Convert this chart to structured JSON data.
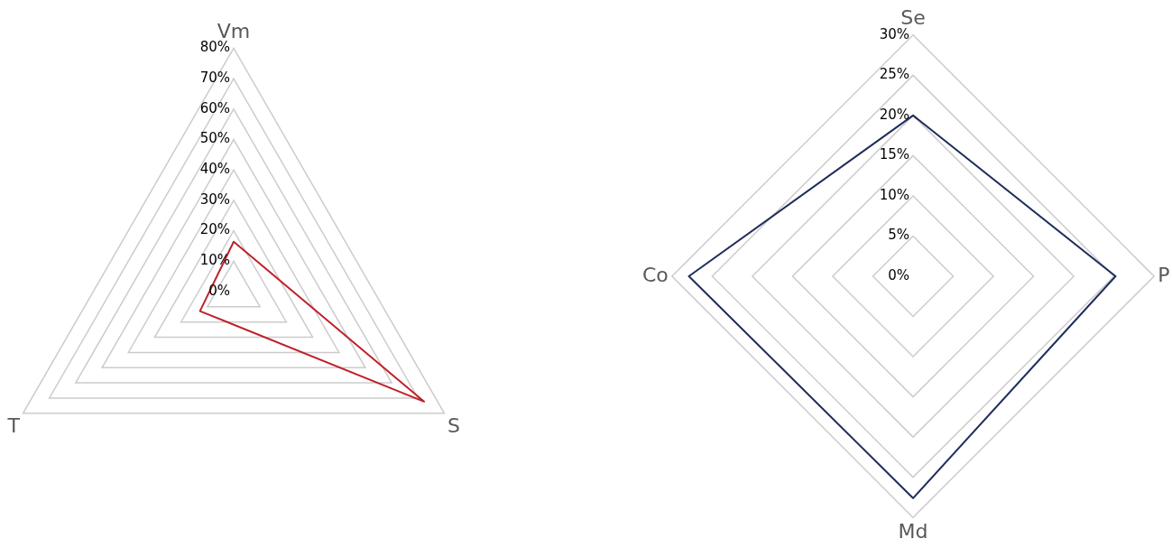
{
  "chart_data": [
    {
      "type": "radar",
      "categories": [
        "Vm",
        "S",
        "T"
      ],
      "series": [
        {
          "color": "#c0202a",
          "values": [
            16.4,
            72.3,
            12.8
          ]
        }
      ],
      "ylim": [
        0,
        80
      ],
      "yticks": [
        {
          "value": 0,
          "label": "0%"
        },
        {
          "value": 10,
          "label": "10%"
        },
        {
          "value": 20,
          "label": "20%"
        },
        {
          "value": 30,
          "label": "30%"
        },
        {
          "value": 40,
          "label": "40%"
        },
        {
          "value": 50,
          "label": "50%"
        },
        {
          "value": 60,
          "label": "60%"
        },
        {
          "value": 70,
          "label": "70%"
        },
        {
          "value": 80,
          "label": "80%"
        }
      ],
      "grid": true,
      "legend": false,
      "marker": "none"
    },
    {
      "type": "radar",
      "categories": [
        "Se",
        "P",
        "Md",
        "Co"
      ],
      "series": [
        {
          "color": "#1f2d5c",
          "values": [
            20,
            25.2,
            27.6,
            27.9
          ]
        }
      ],
      "ylim": [
        0,
        30
      ],
      "yticks": [
        {
          "value": 0,
          "label": "0%"
        },
        {
          "value": 5,
          "label": "5%"
        },
        {
          "value": 10,
          "label": "10%"
        },
        {
          "value": 15,
          "label": "15%"
        },
        {
          "value": 20,
          "label": "20%"
        },
        {
          "value": 25,
          "label": "25%"
        },
        {
          "value": 30,
          "label": "30%"
        }
      ],
      "grid": true,
      "legend": false,
      "marker": "none"
    }
  ]
}
